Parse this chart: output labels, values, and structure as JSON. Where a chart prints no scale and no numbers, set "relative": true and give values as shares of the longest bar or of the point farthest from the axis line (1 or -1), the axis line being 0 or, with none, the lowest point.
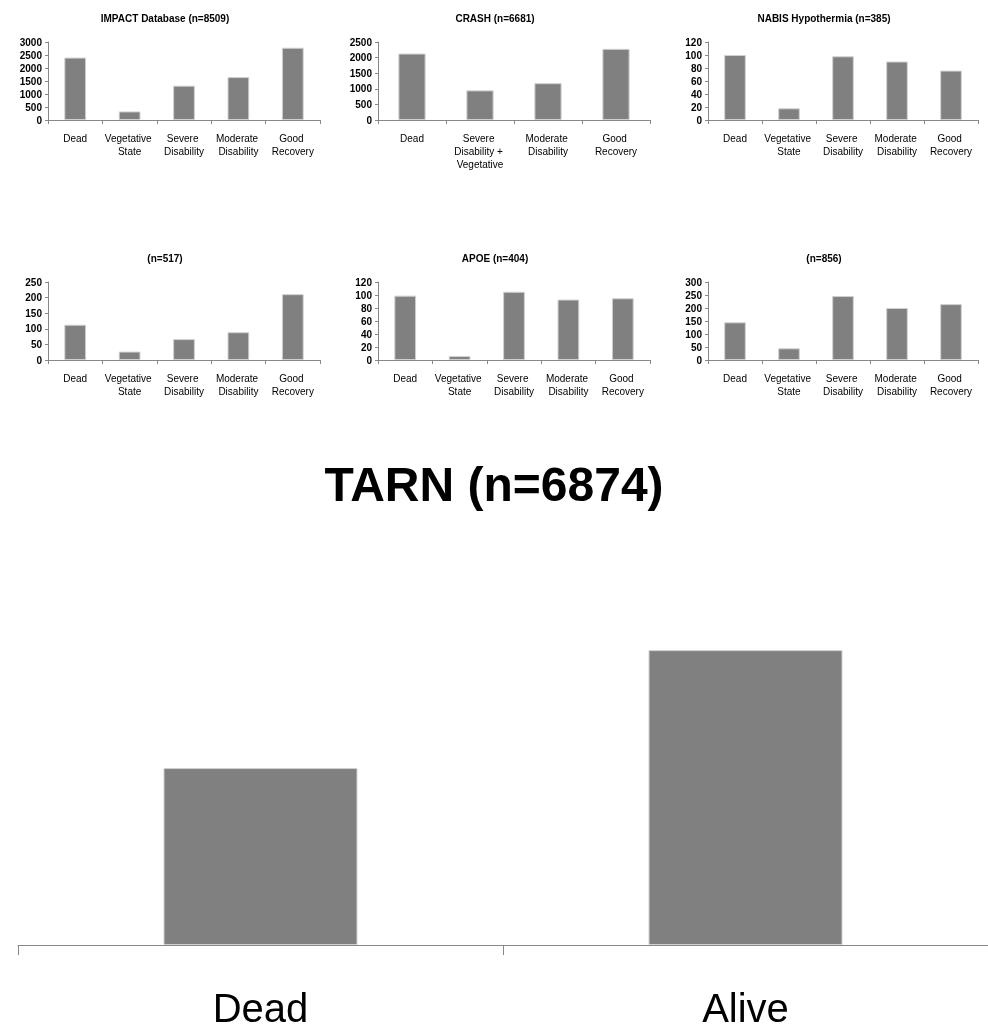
{
  "chart_data": [
    {
      "type": "bar",
      "title": "IMPACT Database (n=8509)",
      "categories": [
        "Dead",
        "Vegetative State",
        "Severe Disability",
        "Moderate Disability",
        "Good Recovery"
      ],
      "values": [
        2400,
        330,
        1320,
        1650,
        2780
      ],
      "color": "#808080",
      "ylim": [
        0,
        3000
      ],
      "yticks": [
        0,
        500,
        1000,
        1500,
        2000,
        2500,
        3000
      ],
      "grid": false
    },
    {
      "type": "bar",
      "title": "CRASH (n=6681)",
      "categories": [
        "Dead",
        "Severe Disability + Vegetative",
        "Moderate Disability",
        "Good Recovery"
      ],
      "values": [
        2130,
        950,
        1180,
        2280
      ],
      "color": "#808080",
      "ylim": [
        0,
        2500
      ],
      "yticks": [
        0,
        500,
        1000,
        1500,
        2000,
        2500
      ],
      "grid": false
    },
    {
      "type": "bar",
      "title": "NABIS Hypothermia (n=385)",
      "categories": [
        "Dead",
        "Vegetative State",
        "Severe Disability",
        "Moderate Disability",
        "Good Recovery"
      ],
      "values": [
        100,
        18,
        98,
        90,
        76
      ],
      "color": "#808080",
      "ylim": [
        0,
        120
      ],
      "yticks": [
        0,
        20,
        40,
        60,
        80,
        100,
        120
      ],
      "grid": false
    },
    {
      "type": "bar",
      "title": "(n=517)",
      "categories": [
        "Dead",
        "Vegetative State",
        "Severe Disability",
        "Moderate Disability",
        "Good Recovery"
      ],
      "values": [
        113,
        27,
        67,
        89,
        211
      ],
      "color": "#808080",
      "ylim": [
        0,
        250
      ],
      "yticks": [
        0,
        50,
        100,
        150,
        200,
        250
      ],
      "grid": false
    },
    {
      "type": "bar",
      "title": "APOE (n=404)",
      "categories": [
        "Dead",
        "Vegetative State",
        "Severe Disability",
        "Moderate Disability",
        "Good Recovery"
      ],
      "values": [
        99,
        6,
        105,
        93,
        95
      ],
      "color": "#808080",
      "ylim": [
        0,
        120
      ],
      "yticks": [
        0,
        20,
        40,
        60,
        80,
        100,
        120
      ],
      "grid": false
    },
    {
      "type": "bar",
      "title": "(n=856)",
      "categories": [
        "Dead",
        "Vegetative State",
        "Severe Disability",
        "Moderate Disability",
        "Good Recovery"
      ],
      "values": [
        145,
        45,
        246,
        200,
        215
      ],
      "color": "#808080",
      "ylim": [
        0,
        300
      ],
      "yticks": [
        0,
        50,
        100,
        150,
        200,
        250,
        300
      ],
      "grid": false
    },
    {
      "type": "bar",
      "title": "TARN (n=6874)",
      "categories": [
        "Dead",
        "Alive"
      ],
      "values": [
        0.6,
        1
      ],
      "color": "#808080",
      "relative": true,
      "grid": false
    }
  ]
}
